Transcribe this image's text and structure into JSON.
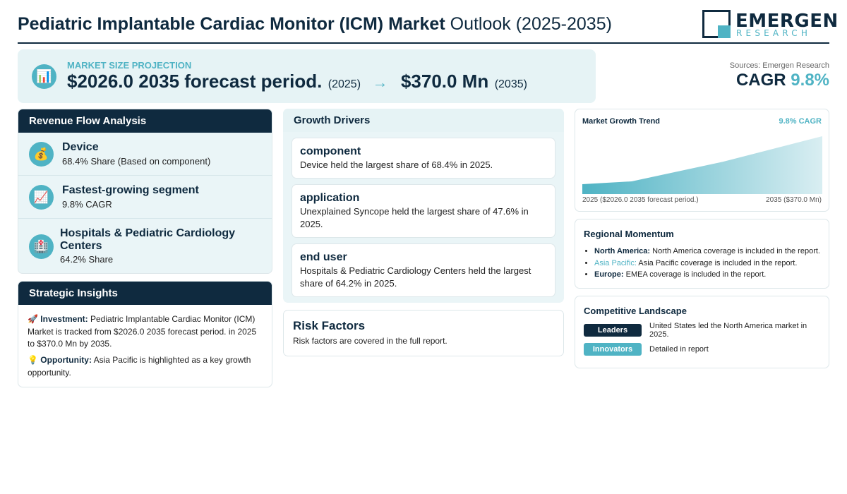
{
  "header": {
    "title_bold": "Pediatric Implantable Cardiac Monitor (ICM) Market",
    "title_rest": "Outlook (2025-2035)",
    "logo_name": "EMERGEN",
    "logo_sub": "RESEARCH"
  },
  "projection": {
    "icon": "bar-chart-icon",
    "label": "MARKET SIZE PROJECTION",
    "start_value": "$2026.0 2035 forecast period.",
    "start_year": "(2025)",
    "arrow": "→",
    "end_value": "$370.0 Mn",
    "end_year": "(2035)"
  },
  "sources": "Sources: Emergen Research",
  "cagr": {
    "label": "CAGR",
    "value": "9.8%"
  },
  "revenue_flow": {
    "title": "Revenue Flow Analysis",
    "items": [
      {
        "icon": "money-bag-icon",
        "title": "Device",
        "sub": "68.4% Share (Based on component)"
      },
      {
        "icon": "trend-chart-icon",
        "title": "Fastest-growing segment",
        "sub": "9.8% CAGR"
      },
      {
        "icon": "hospital-icon",
        "title": "Hospitals & Pediatric Cardiology Centers",
        "sub": "64.2% Share"
      }
    ]
  },
  "insights": {
    "title": "Strategic Insights",
    "investment_label": "Investment:",
    "investment_text": "Pediatric Implantable Cardiac Monitor (ICM) Market is tracked from $2026.0 2035 forecast period. in 2025 to $370.0 Mn by 2035.",
    "opportunity_label": "Opportunity:",
    "opportunity_text": "Asia Pacific is highlighted as a key growth opportunity."
  },
  "growth_drivers": {
    "title": "Growth Drivers",
    "items": [
      {
        "title": "component",
        "desc": "Device held the largest share of 68.4% in 2025."
      },
      {
        "title": "application",
        "desc": "Unexplained Syncope held the largest share of 47.6% in 2025."
      },
      {
        "title": "end user",
        "desc": "Hospitals & Pediatric Cardiology Centers held the largest share of 64.2% in 2025."
      }
    ]
  },
  "risk": {
    "title": "Risk Factors",
    "desc": "Risk factors are covered in the full report."
  },
  "trend": {
    "title": "Market Growth Trend",
    "cagr": "9.8% CAGR",
    "left_label": "2025 ($2026.0 2035 forecast period.)",
    "right_label": "2035 ($370.0 Mn)"
  },
  "regional": {
    "title": "Regional Momentum",
    "items": [
      {
        "region": "North America:",
        "text": "North America coverage is included in the report."
      },
      {
        "region": "Asia Pacific:",
        "text": "Asia Pacific coverage is included in the report."
      },
      {
        "region": "Europe:",
        "text": "EMEA coverage is included in the report."
      }
    ]
  },
  "competitive": {
    "title": "Competitive Landscape",
    "leaders_label": "Leaders",
    "leaders_text": "United States led the North America market in 2025.",
    "innovators_label": "Innovators",
    "innovators_text": "Detailed in report"
  },
  "colors": {
    "navy": "#0f2a3f",
    "teal": "#4fb3c4",
    "light": "#e6f3f5"
  }
}
